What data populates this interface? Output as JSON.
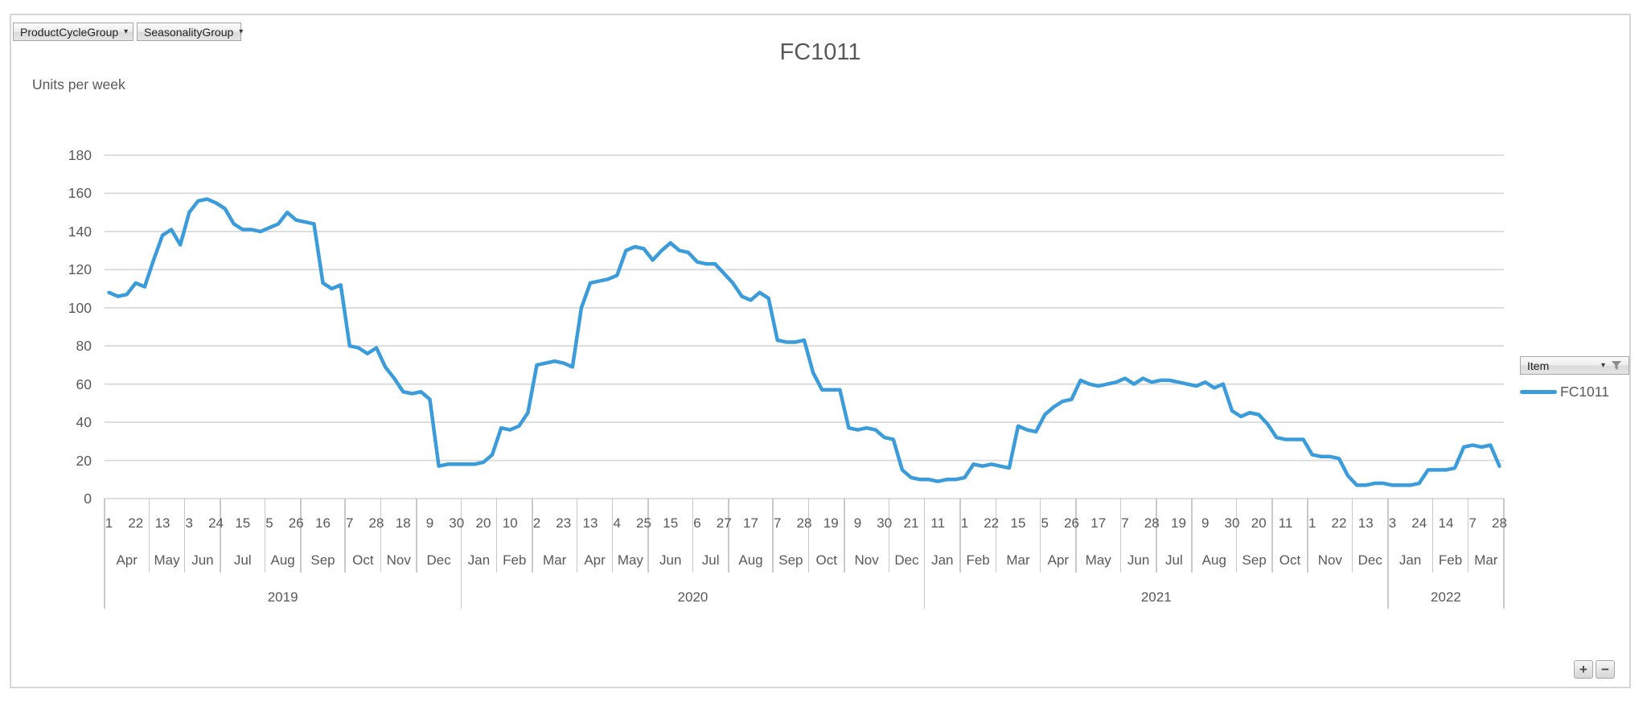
{
  "filter_buttons": {
    "product_cycle_group": {
      "label": "ProductCycleGroup",
      "dropdown_arrow": "▾",
      "has_filter": true
    },
    "seasonality_group": {
      "label": "SeasonalityGroup",
      "dropdown_arrow": "▾",
      "has_filter": false
    }
  },
  "legend": {
    "field_button": {
      "label": "Item",
      "dropdown_arrow": "▾",
      "has_filter": true
    },
    "entries": [
      {
        "label": "FC1011",
        "color": "#3B9CDB"
      }
    ]
  },
  "zoom_controls": {
    "zoom_in": "+",
    "zoom_out": "−"
  },
  "colors": {
    "series_line": "#3B9CDB",
    "axis_text": "#595959",
    "gridline": "#D9D9D9",
    "band_separator": "#C9C9C9"
  },
  "chart_data": {
    "type": "line",
    "title": "FC1011",
    "xlabel": "",
    "ylabel": "Units per week",
    "ylim": [
      0,
      180
    ],
    "y_ticks": [
      0,
      20,
      40,
      60,
      80,
      100,
      120,
      140,
      160,
      180
    ],
    "grid": true,
    "legend_position": "right",
    "x_axis": {
      "unit": "week-start day-of-month, labeled every 3 weeks",
      "tick_interval_weeks": 3,
      "tick_labels": [
        "1",
        "22",
        "13",
        "3",
        "24",
        "15",
        "5",
        "26",
        "16",
        "7",
        "28",
        "18",
        "9",
        "30",
        "20",
        "10",
        "2",
        "23",
        "13",
        "4",
        "25",
        "15",
        "6",
        "27",
        "17",
        "7",
        "28",
        "19",
        "9",
        "30",
        "21",
        "11",
        "1",
        "22",
        "15",
        "5",
        "26",
        "17",
        "7",
        "28",
        "19",
        "9",
        "30",
        "20",
        "11",
        "1",
        "22",
        "13",
        "3",
        "24",
        "14",
        "7",
        "28"
      ],
      "years": [
        {
          "label": "2019",
          "months": [
            {
              "label": "Apr",
              "weeks": 5
            },
            {
              "label": "May",
              "weeks": 4
            },
            {
              "label": "Jun",
              "weeks": 4
            },
            {
              "label": "Jul",
              "weeks": 5
            },
            {
              "label": "Aug",
              "weeks": 4
            },
            {
              "label": "Sep",
              "weeks": 5
            },
            {
              "label": "Oct",
              "weeks": 4
            },
            {
              "label": "Nov",
              "weeks": 4
            },
            {
              "label": "Dec",
              "weeks": 5
            }
          ]
        },
        {
          "label": "2020",
          "months": [
            {
              "label": "Jan",
              "weeks": 4
            },
            {
              "label": "Feb",
              "weeks": 4
            },
            {
              "label": "Mar",
              "weeks": 5
            },
            {
              "label": "Apr",
              "weeks": 4
            },
            {
              "label": "May",
              "weeks": 4
            },
            {
              "label": "Jun",
              "weeks": 5
            },
            {
              "label": "Jul",
              "weeks": 4
            },
            {
              "label": "Aug",
              "weeks": 5
            },
            {
              "label": "Sep",
              "weeks": 4
            },
            {
              "label": "Oct",
              "weeks": 4
            },
            {
              "label": "Nov",
              "weeks": 5
            },
            {
              "label": "Dec",
              "weeks": 4
            }
          ]
        },
        {
          "label": "2021",
          "months": [
            {
              "label": "Jan",
              "weeks": 4
            },
            {
              "label": "Feb",
              "weeks": 4
            },
            {
              "label": "Mar",
              "weeks": 5
            },
            {
              "label": "Apr",
              "weeks": 4
            },
            {
              "label": "May",
              "weeks": 5
            },
            {
              "label": "Jun",
              "weeks": 4
            },
            {
              "label": "Jul",
              "weeks": 4
            },
            {
              "label": "Aug",
              "weeks": 5
            },
            {
              "label": "Sep",
              "weeks": 4
            },
            {
              "label": "Oct",
              "weeks": 4
            },
            {
              "label": "Nov",
              "weeks": 5
            },
            {
              "label": "Dec",
              "weeks": 4
            }
          ]
        },
        {
          "label": "2022",
          "months": [
            {
              "label": "Jan",
              "weeks": 5
            },
            {
              "label": "Feb",
              "weeks": 4
            },
            {
              "label": "Mar",
              "weeks": 4
            }
          ]
        }
      ]
    },
    "series": [
      {
        "name": "FC1011",
        "color": "#3B9CDB",
        "values": [
          108,
          106,
          107,
          113,
          111,
          125,
          138,
          141,
          133,
          150,
          156,
          157,
          155,
          152,
          144,
          141,
          141,
          140,
          142,
          144,
          150,
          146,
          145,
          144,
          113,
          110,
          112,
          80,
          79,
          76,
          79,
          69,
          63,
          56,
          55,
          56,
          52,
          17,
          18,
          18,
          18,
          18,
          19,
          23,
          37,
          36,
          38,
          45,
          70,
          71,
          72,
          71,
          69,
          100,
          113,
          114,
          115,
          117,
          130,
          132,
          131,
          125,
          130,
          134,
          130,
          129,
          124,
          123,
          123,
          118,
          113,
          106,
          104,
          108,
          105,
          83,
          82,
          82,
          83,
          66,
          57,
          57,
          57,
          37,
          36,
          37,
          36,
          32,
          31,
          15,
          11,
          10,
          10,
          9,
          10,
          10,
          11,
          18,
          17,
          18,
          17,
          16,
          38,
          36,
          35,
          44,
          48,
          51,
          52,
          62,
          60,
          59,
          60,
          61,
          63,
          60,
          63,
          61,
          62,
          62,
          61,
          60,
          59,
          61,
          58,
          60,
          46,
          43,
          45,
          44,
          39,
          32,
          31,
          31,
          31,
          23,
          22,
          22,
          21,
          12,
          7,
          7,
          8,
          8,
          7,
          7,
          7,
          8,
          15,
          15,
          15,
          16,
          27,
          28,
          27,
          28,
          17
        ]
      }
    ]
  }
}
